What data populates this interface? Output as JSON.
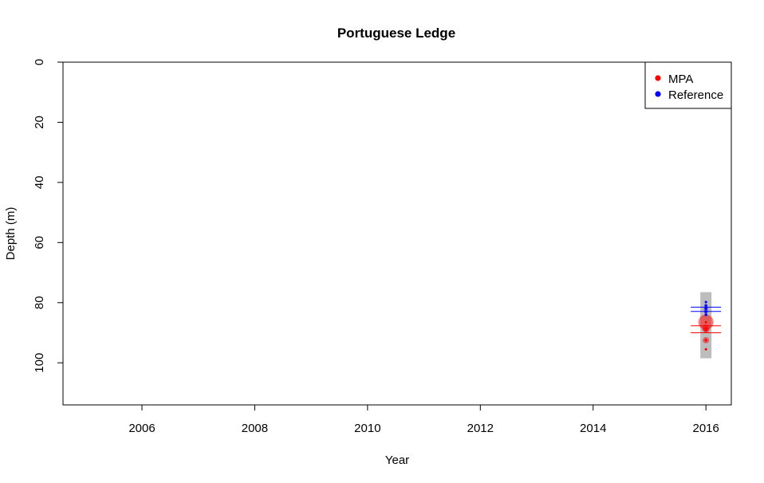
{
  "chart_data": {
    "type": "scatter",
    "title": "Portuguese Ledge",
    "xlabel": "Year",
    "ylabel": "Depth (m)",
    "xlim": [
      2004.6,
      2016.45
    ],
    "ylim": [
      0,
      114
    ],
    "y_reversed": true,
    "x_ticks": [
      "2006",
      "2008",
      "2010",
      "2012",
      "2014",
      "2016"
    ],
    "y_ticks": [
      "0",
      "20",
      "40",
      "60",
      "80",
      "100"
    ],
    "grid": false,
    "legend_position": "top-right",
    "depth_range_band": {
      "x": 2016,
      "ymin": 76.5,
      "ymax": 98.5,
      "color": "#bdbdbd"
    },
    "series": [
      {
        "name": "MPA",
        "color": "#ff0000",
        "points": [
          {
            "x": 2016,
            "y": 86.5,
            "size": 3.2
          },
          {
            "x": 2016,
            "y": 88.5,
            "size": 1.6
          },
          {
            "x": 2016,
            "y": 89.0,
            "size": 1.2
          },
          {
            "x": 2016,
            "y": 92.5,
            "size": 1.3
          },
          {
            "x": 2016,
            "y": 95.5,
            "size": 0.5
          }
        ],
        "hlines": [
          87.7,
          90.0
        ]
      },
      {
        "name": "Reference",
        "color": "#0000ff",
        "points": [
          {
            "x": 2016,
            "y": 79.8,
            "size": 0.5
          },
          {
            "x": 2016,
            "y": 81.0,
            "size": 0.7
          },
          {
            "x": 2016,
            "y": 82.0,
            "size": 0.9
          },
          {
            "x": 2016,
            "y": 83.0,
            "size": 0.8
          },
          {
            "x": 2016,
            "y": 84.0,
            "size": 0.6
          }
        ],
        "hlines": [
          81.5,
          82.9
        ]
      }
    ]
  }
}
